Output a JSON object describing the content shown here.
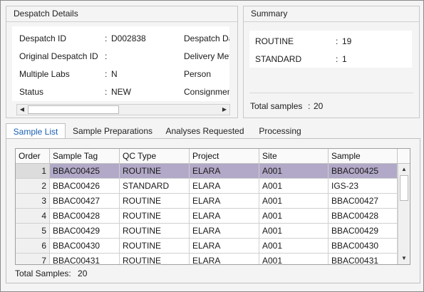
{
  "despatch": {
    "title": "Despatch Details",
    "fields": [
      {
        "label": "Despatch ID",
        "sep": ":",
        "value": "D002838"
      },
      {
        "label": "Original Despatch ID",
        "sep": ":",
        "value": ""
      },
      {
        "label": "Multiple Labs",
        "sep": ":",
        "value": "N"
      },
      {
        "label": "Status",
        "sep": ":",
        "value": "NEW"
      }
    ],
    "right_labels": [
      "Despatch Date",
      "Delivery Method",
      "Person",
      "Consignment"
    ]
  },
  "summary": {
    "title": "Summary",
    "rows": [
      {
        "label": "ROUTINE",
        "sep": ":",
        "value": "19"
      },
      {
        "label": "STANDARD",
        "sep": ":",
        "value": "1"
      }
    ],
    "total_label": "Total samples",
    "total_sep": ":",
    "total_value": "20"
  },
  "tabs": [
    {
      "label": "Sample List",
      "active": true
    },
    {
      "label": "Sample Preparations",
      "active": false
    },
    {
      "label": "Analyses Requested",
      "active": false
    },
    {
      "label": "Processing",
      "active": false
    }
  ],
  "grid": {
    "columns": [
      "Order",
      "Sample Tag",
      "QC Type",
      "Project",
      "Site",
      "Sample"
    ],
    "rows": [
      [
        "1",
        "BBAC00425",
        "ROUTINE",
        "ELARA",
        "A001",
        "BBAC00425"
      ],
      [
        "2",
        "BBAC00426",
        "STANDARD",
        "ELARA",
        "A001",
        "IGS-23"
      ],
      [
        "3",
        "BBAC00427",
        "ROUTINE",
        "ELARA",
        "A001",
        "BBAC00427"
      ],
      [
        "4",
        "BBAC00428",
        "ROUTINE",
        "ELARA",
        "A001",
        "BBAC00428"
      ],
      [
        "5",
        "BBAC00429",
        "ROUTINE",
        "ELARA",
        "A001",
        "BBAC00429"
      ],
      [
        "6",
        "BBAC00430",
        "ROUTINE",
        "ELARA",
        "A001",
        "BBAC00430"
      ],
      [
        "7",
        "BBAC00431",
        "ROUTINE",
        "ELARA",
        "A001",
        "BBAC00431"
      ]
    ],
    "selected_row": 0,
    "selected_color": "#b1a9c7"
  },
  "footer": {
    "total_label": "Total Samples:",
    "total_value": "20"
  },
  "icons": {
    "left": "◀",
    "right": "▶",
    "up": "▲",
    "down": "▼"
  }
}
